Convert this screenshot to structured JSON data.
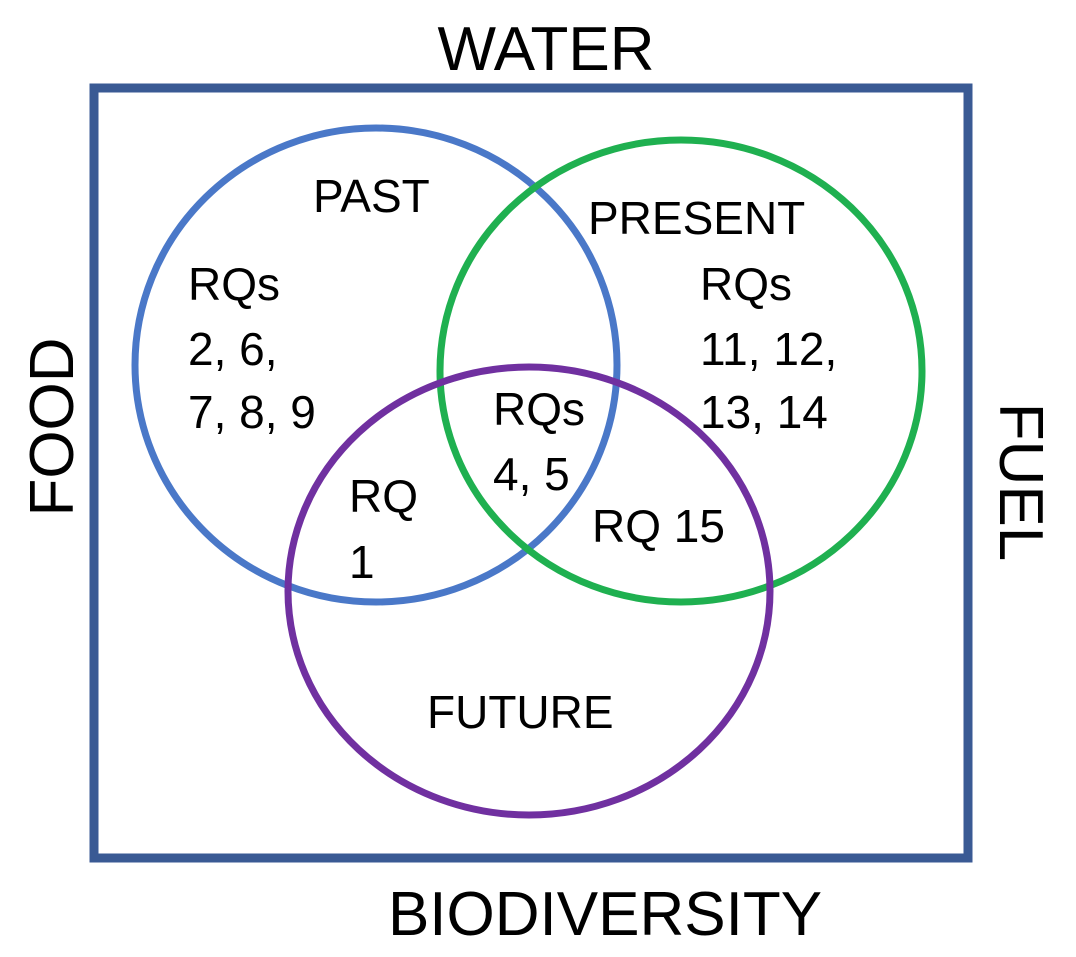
{
  "labels": {
    "top": "WATER",
    "bottom": "BIODIVERSITY",
    "left": "FOOD",
    "right": "FUEL"
  },
  "circles": [
    {
      "label": "PAST"
    },
    {
      "label": "PRESENT"
    },
    {
      "label": "FUTURE"
    }
  ],
  "regions": [
    {
      "lines": [
        "RQs",
        "2, 6,",
        "7, 8, 9"
      ]
    },
    {
      "lines": [
        "RQs",
        "11, 12,",
        "13, 14"
      ]
    },
    {
      "lines": [
        "RQs",
        "4, 5"
      ]
    },
    {
      "lines": [
        "RQ",
        "1"
      ]
    },
    {
      "lines": [
        "RQ 15"
      ]
    }
  ]
}
